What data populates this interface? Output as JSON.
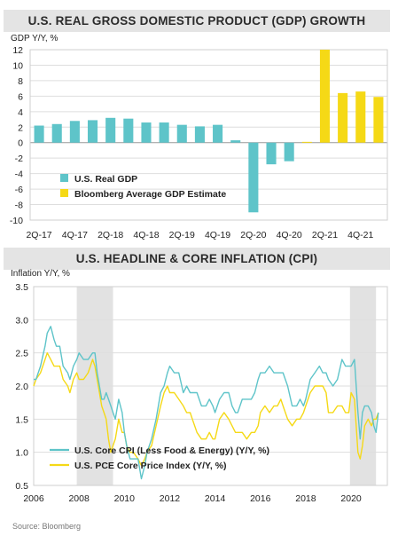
{
  "source_note": "Source: Bloomberg",
  "chart_data": [
    {
      "type": "bar",
      "title": "U.S. REAL GROSS DOMESTIC PRODUCT (GDP) GROWTH",
      "ylabel": "GDP Y/Y, %",
      "xlabel": "",
      "ylim": [
        -10,
        12
      ],
      "yticks": [
        -10,
        -8,
        -6,
        -4,
        -2,
        0,
        2,
        4,
        6,
        8,
        10,
        12
      ],
      "grid": true,
      "legend_position": "bottom-left",
      "categories": [
        "2Q-17",
        "3Q-17",
        "4Q-17",
        "1Q-18",
        "2Q-18",
        "3Q-18",
        "4Q-18",
        "1Q-19",
        "2Q-19",
        "3Q-19",
        "4Q-19",
        "1Q-20",
        "2Q-20",
        "3Q-20",
        "4Q-20",
        "1Q-21",
        "2Q-21",
        "3Q-21",
        "4Q-21",
        "1Q-22"
      ],
      "xtick_labels": [
        "2Q-17",
        "4Q-17",
        "2Q-18",
        "4Q-18",
        "2Q-19",
        "4Q-19",
        "2Q-20",
        "4Q-20",
        "2Q-21",
        "4Q-21"
      ],
      "series": [
        {
          "name": "U.S. Real GDP",
          "color": "#5ec4c9",
          "values": [
            2.2,
            2.4,
            2.8,
            2.9,
            3.2,
            3.1,
            2.6,
            2.6,
            2.3,
            2.1,
            2.3,
            0.3,
            -9.0,
            -2.8,
            -2.4,
            null,
            null,
            null,
            null,
            null
          ]
        },
        {
          "name": "Bloomberg Average GDP Estimate",
          "color": "#f5d916",
          "values": [
            null,
            null,
            null,
            null,
            null,
            null,
            null,
            null,
            null,
            null,
            null,
            null,
            null,
            null,
            null,
            0.1,
            12.0,
            6.4,
            6.6,
            5.9
          ]
        }
      ]
    },
    {
      "type": "line",
      "title": "U.S. HEADLINE & CORE INFLATION (CPI)",
      "ylabel": "Inflation Y/Y, %",
      "xlabel": "",
      "ylim": [
        0.5,
        3.5
      ],
      "xlim": [
        2006,
        2021.6
      ],
      "yticks": [
        0.5,
        1.0,
        1.5,
        2.0,
        2.5,
        3.0,
        3.5
      ],
      "xticks": [
        2006,
        2008,
        2010,
        2012,
        2014,
        2016,
        2018,
        2020
      ],
      "grid": true,
      "legend_position": "bottom-left",
      "shaded_periods": [
        [
          2007.9,
          2009.5
        ],
        [
          2019.95,
          2021.1
        ]
      ],
      "series": [
        {
          "name": "U.S. Core CPI (Less Food & Energy) (Y/Y, %)",
          "color": "#5ec4c9",
          "x": [
            2006.0,
            2006.1,
            2006.3,
            2006.5,
            2006.6,
            2006.75,
            2006.9,
            2007.0,
            2007.15,
            2007.3,
            2007.5,
            2007.6,
            2007.75,
            2007.9,
            2008.0,
            2008.2,
            2008.4,
            2008.6,
            2008.7,
            2008.8,
            2008.9,
            2009.0,
            2009.1,
            2009.2,
            2009.3,
            2009.4,
            2009.5,
            2009.6,
            2009.75,
            2009.9,
            2010.0,
            2010.1,
            2010.25,
            2010.4,
            2010.6,
            2010.75,
            2010.9,
            2011.0,
            2011.2,
            2011.4,
            2011.6,
            2011.75,
            2011.9,
            2012.0,
            2012.2,
            2012.4,
            2012.6,
            2012.75,
            2012.9,
            2013.0,
            2013.2,
            2013.4,
            2013.6,
            2013.75,
            2013.9,
            2014.0,
            2014.2,
            2014.4,
            2014.6,
            2014.75,
            2014.9,
            2015.0,
            2015.2,
            2015.4,
            2015.6,
            2015.75,
            2015.9,
            2016.0,
            2016.2,
            2016.4,
            2016.6,
            2016.75,
            2016.9,
            2017.0,
            2017.2,
            2017.4,
            2017.6,
            2017.75,
            2017.9,
            2018.0,
            2018.2,
            2018.4,
            2018.6,
            2018.75,
            2018.9,
            2019.0,
            2019.2,
            2019.4,
            2019.6,
            2019.75,
            2019.9,
            2020.0,
            2020.15,
            2020.3,
            2020.4,
            2020.5,
            2020.6,
            2020.75,
            2020.9,
            2021.0,
            2021.1,
            2021.2
          ],
          "y": [
            2.1,
            2.1,
            2.3,
            2.6,
            2.8,
            2.9,
            2.7,
            2.6,
            2.6,
            2.3,
            2.2,
            2.1,
            2.3,
            2.4,
            2.5,
            2.4,
            2.4,
            2.5,
            2.5,
            2.2,
            2.0,
            1.8,
            1.8,
            1.9,
            1.8,
            1.7,
            1.6,
            1.5,
            1.8,
            1.6,
            1.3,
            1.1,
            0.9,
            0.9,
            0.9,
            0.6,
            0.8,
            1.0,
            1.2,
            1.5,
            1.9,
            2.0,
            2.2,
            2.3,
            2.2,
            2.2,
            1.9,
            2.0,
            1.9,
            1.9,
            1.9,
            1.7,
            1.7,
            1.8,
            1.7,
            1.6,
            1.8,
            1.9,
            1.9,
            1.7,
            1.6,
            1.6,
            1.8,
            1.8,
            1.8,
            1.9,
            2.1,
            2.2,
            2.2,
            2.3,
            2.2,
            2.2,
            2.2,
            2.2,
            2.0,
            1.7,
            1.7,
            1.8,
            1.7,
            1.8,
            2.1,
            2.2,
            2.3,
            2.2,
            2.2,
            2.1,
            2.0,
            2.1,
            2.4,
            2.3,
            2.3,
            2.3,
            2.4,
            1.6,
            1.2,
            1.6,
            1.7,
            1.7,
            1.6,
            1.4,
            1.3,
            1.6
          ]
        },
        {
          "name": "U.S. PCE Core Price Index (Y/Y, %)",
          "color": "#f5d916",
          "x": [
            2006.0,
            2006.1,
            2006.3,
            2006.5,
            2006.6,
            2006.75,
            2006.9,
            2007.0,
            2007.15,
            2007.3,
            2007.5,
            2007.6,
            2007.75,
            2007.9,
            2008.0,
            2008.2,
            2008.4,
            2008.6,
            2008.7,
            2008.8,
            2008.9,
            2009.0,
            2009.1,
            2009.2,
            2009.3,
            2009.4,
            2009.5,
            2009.6,
            2009.75,
            2009.9,
            2010.0,
            2010.1,
            2010.25,
            2010.4,
            2010.6,
            2010.75,
            2010.9,
            2011.0,
            2011.2,
            2011.4,
            2011.6,
            2011.75,
            2011.9,
            2012.0,
            2012.2,
            2012.4,
            2012.6,
            2012.75,
            2012.9,
            2013.0,
            2013.2,
            2013.4,
            2013.6,
            2013.75,
            2013.9,
            2014.0,
            2014.2,
            2014.4,
            2014.6,
            2014.75,
            2014.9,
            2015.0,
            2015.2,
            2015.4,
            2015.6,
            2015.75,
            2015.9,
            2016.0,
            2016.2,
            2016.4,
            2016.6,
            2016.75,
            2016.9,
            2017.0,
            2017.2,
            2017.4,
            2017.6,
            2017.75,
            2017.9,
            2018.0,
            2018.2,
            2018.4,
            2018.6,
            2018.75,
            2018.9,
            2019.0,
            2019.2,
            2019.4,
            2019.6,
            2019.75,
            2019.9,
            2020.0,
            2020.15,
            2020.3,
            2020.4,
            2020.5,
            2020.6,
            2020.75,
            2020.9,
            2021.0,
            2021.1,
            2021.2
          ],
          "y": [
            2.0,
            2.1,
            2.2,
            2.4,
            2.5,
            2.4,
            2.3,
            2.3,
            2.3,
            2.1,
            2.0,
            1.9,
            2.1,
            2.2,
            2.1,
            2.1,
            2.2,
            2.4,
            2.3,
            2.1,
            1.9,
            1.7,
            1.6,
            1.5,
            1.2,
            1.0,
            1.1,
            1.2,
            1.5,
            1.3,
            1.3,
            1.1,
            1.0,
            1.0,
            0.9,
            0.8,
            0.9,
            1.0,
            1.1,
            1.4,
            1.7,
            1.9,
            2.0,
            1.9,
            1.9,
            1.8,
            1.7,
            1.6,
            1.6,
            1.5,
            1.3,
            1.2,
            1.2,
            1.3,
            1.2,
            1.2,
            1.5,
            1.6,
            1.5,
            1.4,
            1.3,
            1.3,
            1.3,
            1.2,
            1.3,
            1.3,
            1.4,
            1.6,
            1.7,
            1.6,
            1.7,
            1.7,
            1.8,
            1.7,
            1.5,
            1.4,
            1.5,
            1.5,
            1.6,
            1.7,
            1.9,
            2.0,
            2.0,
            2.0,
            1.9,
            1.6,
            1.6,
            1.7,
            1.7,
            1.6,
            1.6,
            1.9,
            1.8,
            1.0,
            0.9,
            1.1,
            1.4,
            1.5,
            1.4,
            1.5,
            1.5,
            1.6
          ]
        }
      ]
    }
  ]
}
